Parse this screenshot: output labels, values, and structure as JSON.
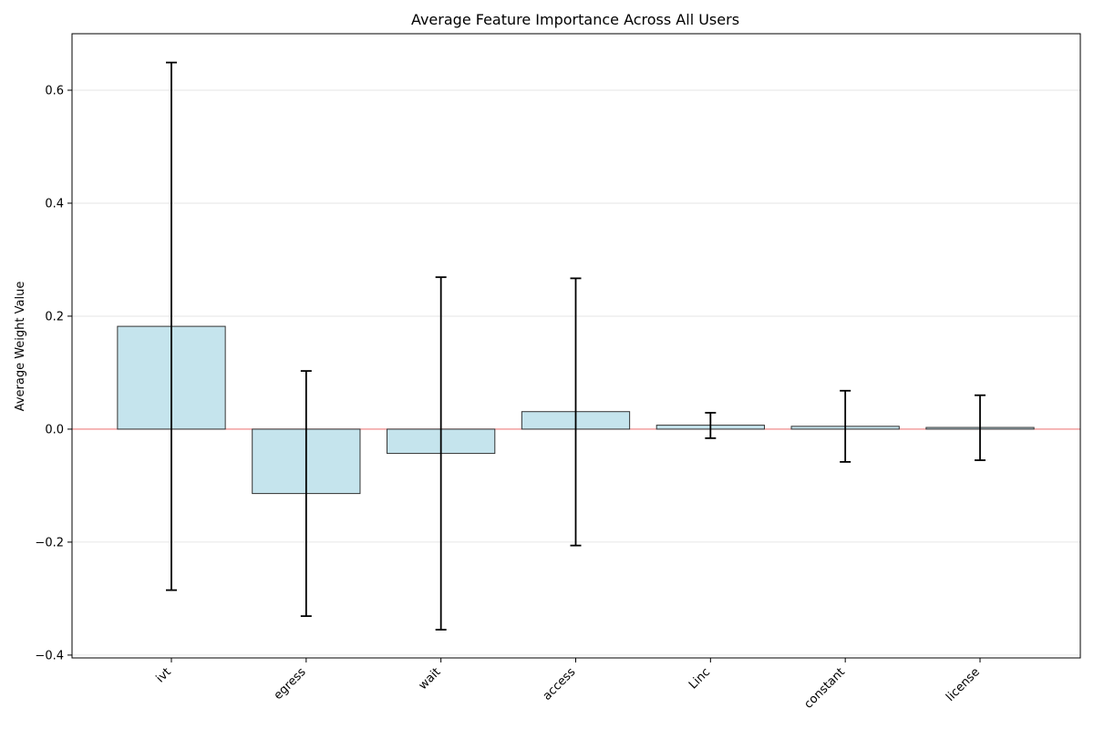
{
  "chart_data": {
    "type": "bar",
    "title": "Average Feature Importance Across All Users",
    "xlabel": "",
    "ylabel": "Average Weight Value",
    "categories": [
      "ivt",
      "egress",
      "wait",
      "access",
      "Linc",
      "constant",
      "license"
    ],
    "values": [
      0.182,
      -0.114,
      -0.043,
      0.031,
      0.007,
      0.005,
      0.003
    ],
    "error_low": [
      -0.285,
      -0.331,
      -0.355,
      -0.206,
      -0.016,
      -0.058,
      -0.055
    ],
    "error_high": [
      0.649,
      0.103,
      0.269,
      0.267,
      0.029,
      0.068,
      0.06
    ],
    "ylim": [
      -0.405,
      0.7
    ],
    "yticks": [
      -0.4,
      -0.2,
      0.0,
      0.2,
      0.4,
      0.6
    ],
    "ytick_labels": [
      "−0.4",
      "−0.2",
      "0.0",
      "0.2",
      "0.4",
      "0.6"
    ],
    "grid": "horizontal",
    "zero_line": true,
    "colors": {
      "bar_fill": "#add8e6",
      "bar_edge": "#333333",
      "zero_line": "#f08080",
      "grid": "#e6e6e6",
      "error_bar": "#000000"
    }
  }
}
